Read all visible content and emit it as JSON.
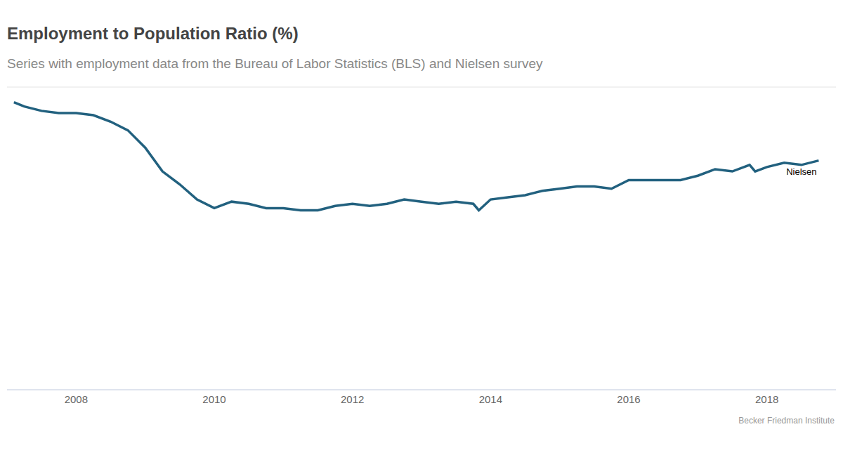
{
  "chart_data": {
    "type": "line",
    "title": "Employment to Population Ratio (%)",
    "subtitle": "Series with employment data from the Bureau of Labor Statistics (BLS) and Nielsen survey",
    "source": "Becker Friedman Institute",
    "x": [
      2007.1,
      2007.25,
      2007.5,
      2007.75,
      2008.0,
      2008.25,
      2008.5,
      2008.75,
      2009.0,
      2009.25,
      2009.5,
      2009.75,
      2010.0,
      2010.25,
      2010.5,
      2010.75,
      2011.0,
      2011.25,
      2011.5,
      2011.75,
      2012.0,
      2012.25,
      2012.5,
      2012.75,
      2013.0,
      2013.25,
      2013.5,
      2013.75,
      2013.83,
      2014.0,
      2014.25,
      2014.5,
      2014.75,
      2015.0,
      2015.25,
      2015.5,
      2015.75,
      2016.0,
      2016.25,
      2016.5,
      2016.75,
      2017.0,
      2017.25,
      2017.5,
      2017.75,
      2017.83,
      2018.0,
      2018.25,
      2018.5,
      2018.75
    ],
    "values": [
      63.3,
      63.1,
      62.9,
      62.8,
      62.8,
      62.7,
      62.4,
      62.0,
      61.2,
      60.1,
      59.5,
      58.8,
      58.4,
      58.7,
      58.6,
      58.4,
      58.4,
      58.3,
      58.3,
      58.5,
      58.6,
      58.5,
      58.6,
      58.8,
      58.7,
      58.6,
      58.7,
      58.6,
      58.3,
      58.8,
      58.9,
      59.0,
      59.2,
      59.3,
      59.4,
      59.4,
      59.3,
      59.7,
      59.7,
      59.7,
      59.7,
      59.9,
      60.2,
      60.1,
      60.4,
      60.1,
      60.3,
      60.5,
      60.4,
      60.6
    ],
    "color": "#22617f",
    "xlim": [
      2007,
      2019
    ],
    "xticks": [
      2008,
      2010,
      2012,
      2014,
      2016,
      2018
    ],
    "ylim": [
      50,
      64
    ],
    "yticks": [
      50,
      52,
      54,
      56,
      58,
      60,
      62,
      64
    ],
    "grid": true,
    "tick_labels": "x",
    "annotations": [
      {
        "text": "Nielsen",
        "x": 2018.5,
        "y": 60.4
      }
    ]
  }
}
